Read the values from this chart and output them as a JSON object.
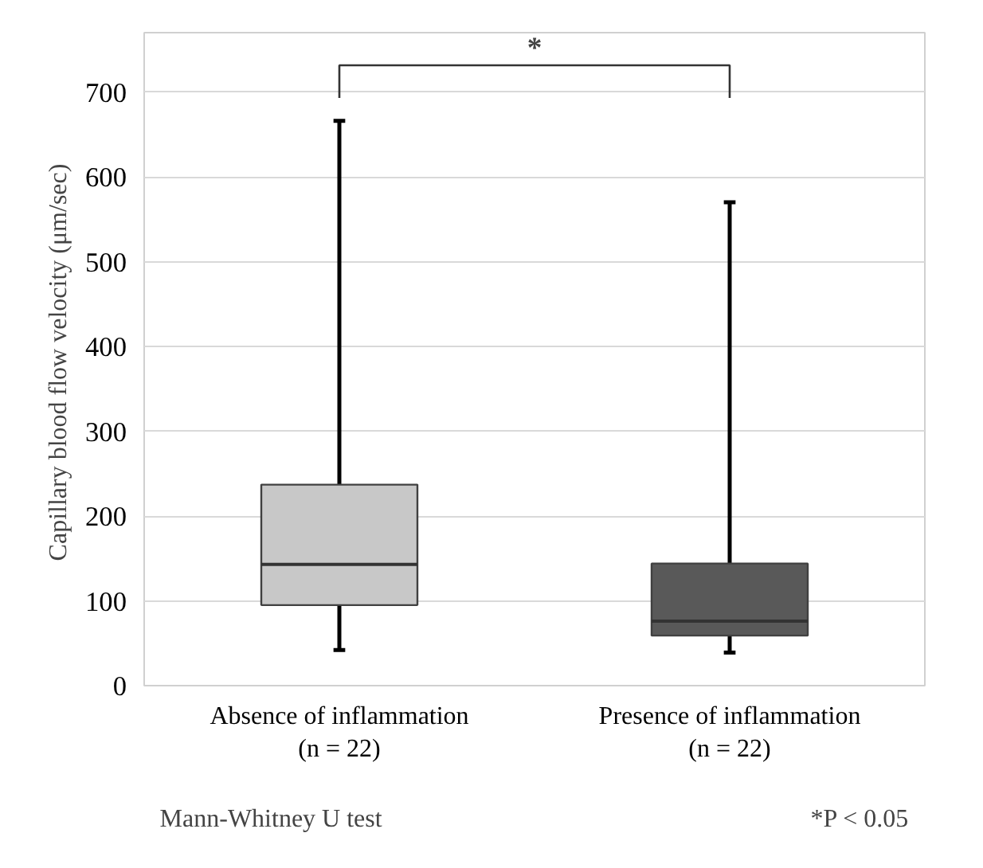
{
  "chart_data": {
    "type": "box",
    "ylabel": "Capillary blood flow velocity  (μm/sec)",
    "categories": [
      "Absence of inflammation\n(n = 22)",
      "Presence of inflammation\n(n = 22)"
    ],
    "boxes": [
      {
        "low": 42,
        "q1": 95,
        "median": 143,
        "q3": 237,
        "high": 666
      },
      {
        "low": 39,
        "q1": 59,
        "median": 76,
        "q3": 144,
        "high": 570
      }
    ],
    "colors": [
      "#c8c8c8",
      "#595959"
    ],
    "ylim": [
      0,
      770
    ],
    "yticks": [
      0,
      100,
      200,
      300,
      400,
      500,
      600,
      700
    ],
    "grid": "y",
    "annotations": [
      "*",
      "Mann-Whitney U test",
      "*P < 0.05"
    ]
  }
}
